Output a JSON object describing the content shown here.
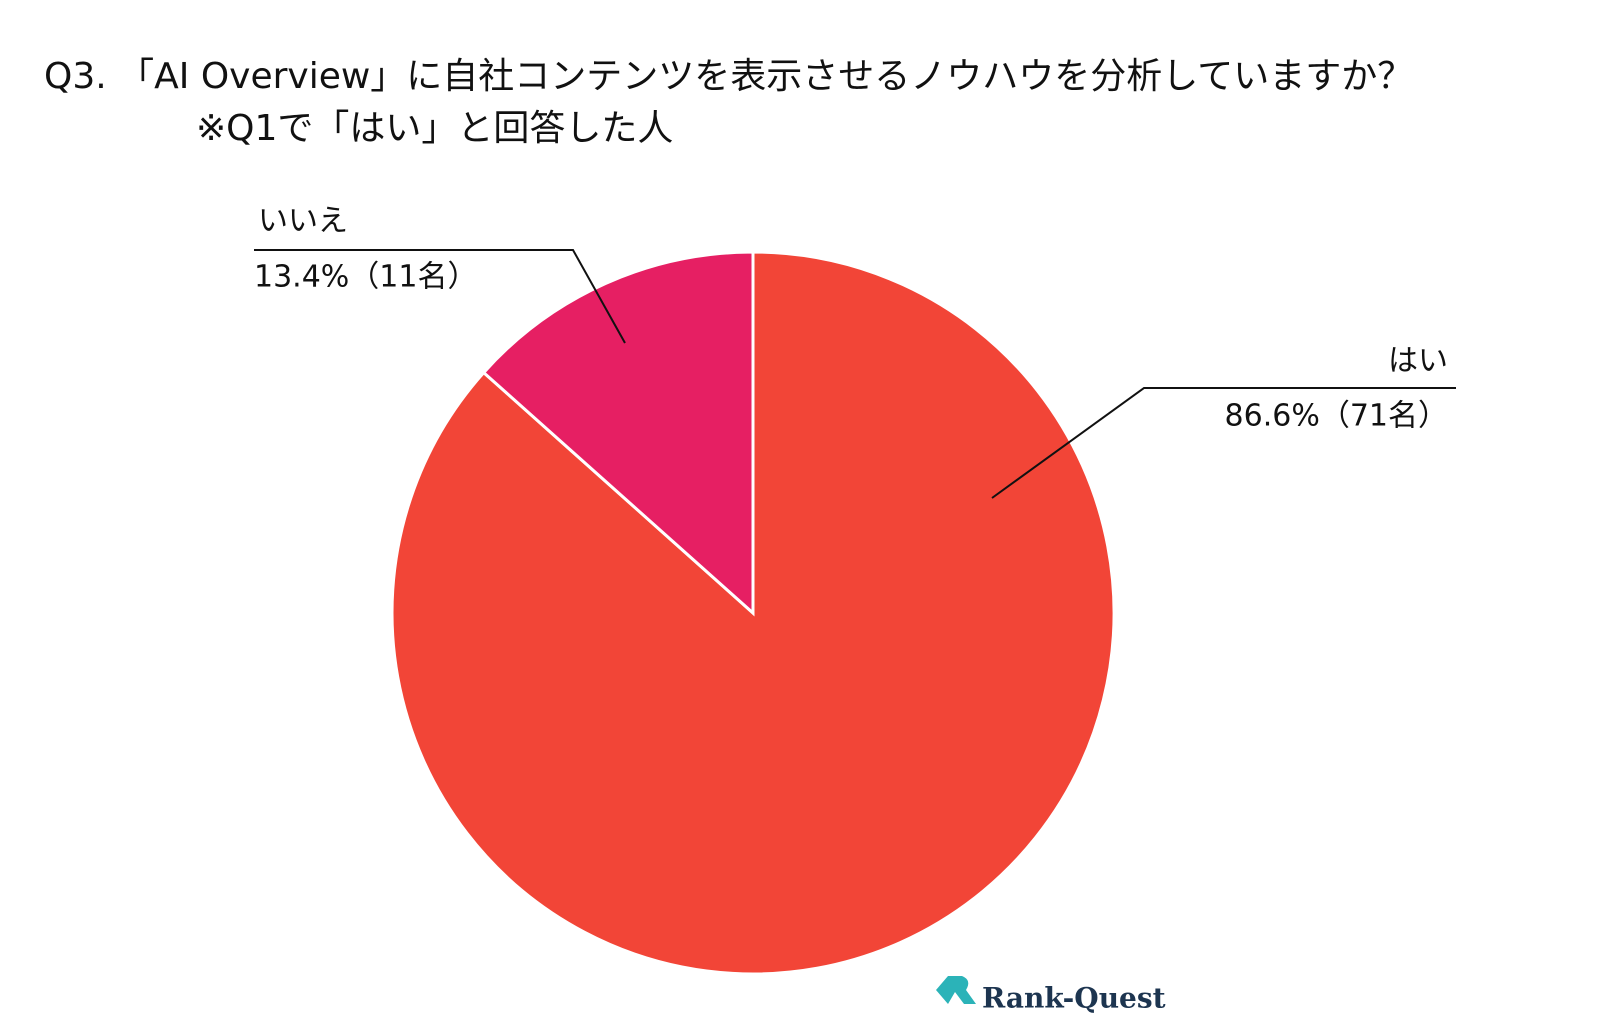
{
  "chart_data": {
    "type": "pie",
    "title": "Q3. 「AI Overview」に自社コンテンツを表示させるノウハウを分析していますか？",
    "subtitle": "※Q1で「はい」と回答した人",
    "categories": [
      "はい",
      "いいえ"
    ],
    "values": [
      86.6,
      13.4
    ],
    "value_labels": [
      "86.6%（71名）",
      "13.4%（11名）"
    ],
    "colors": [
      "#f24537",
      "#e61f63"
    ],
    "start_angle": 0,
    "direction": "clockwise"
  },
  "logo": "Rank-Quest"
}
